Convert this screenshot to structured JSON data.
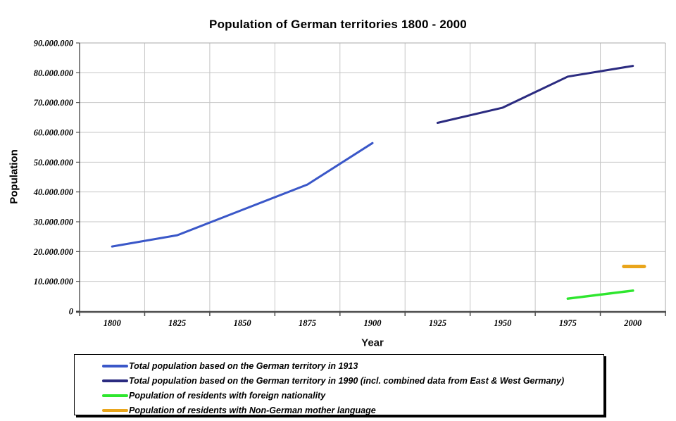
{
  "chart": {
    "title": "Population of German territories 1800 - 2000",
    "y_axis_title": "Population",
    "x_axis_title": "Year"
  },
  "chart_data": {
    "type": "line",
    "title": "Population of German territories 1800 - 2000",
    "xlabel": "Year",
    "ylabel": "Population",
    "x_categories": [
      1800,
      1825,
      1850,
      1875,
      1900,
      1925,
      1950,
      1975,
      2000
    ],
    "x_tick_labels": [
      "1800",
      "1825",
      "1850",
      "1875",
      "1900",
      "1925",
      "1950",
      "1975",
      "2000"
    ],
    "y_tick_labels": [
      "0",
      "10.000.000",
      "20.000.000",
      "30.000.000",
      "40.000.000",
      "50.000.000",
      "60.000.000",
      "70.000.000",
      "80.000.000",
      "90.000.000"
    ],
    "ylim": [
      0,
      90000000
    ],
    "y_tick_step": 10000000,
    "grid": true,
    "legend_position": "bottom",
    "colors": {
      "grid": "#c6c6c6",
      "plot_border": "#aaaaaa",
      "y_axis_line": "#333333",
      "x_axis_line": "#4d4d4d"
    },
    "series": [
      {
        "name": "Total population based on the German territory in 1913",
        "color": "#3a57c8",
        "stroke_width": 3,
        "points": [
          [
            1800,
            21700000
          ],
          [
            1825,
            25500000
          ],
          [
            1850,
            34000000
          ],
          [
            1875,
            42500000
          ],
          [
            1900,
            56400000
          ]
        ]
      },
      {
        "name": "Total population based on the German territory in 1990 (incl. combined data from East & West Germany)",
        "color": "#2b2b80",
        "stroke_width": 3,
        "points": [
          [
            1925,
            63200000
          ],
          [
            1950,
            68300000
          ],
          [
            1975,
            78700000
          ],
          [
            2000,
            82300000
          ]
        ]
      },
      {
        "name": "Population of residents with foreign nationality",
        "color": "#2ee62e",
        "stroke_width": 3.5,
        "points": [
          [
            1975,
            4200000
          ],
          [
            2000,
            6900000
          ]
        ]
      },
      {
        "name": "Population of residents with Non-German mother language",
        "color": "#e9a51b",
        "stroke_width": 5,
        "points": [
          [
            1996.5,
            15000000
          ],
          [
            2004.4,
            15000000
          ]
        ]
      }
    ]
  }
}
